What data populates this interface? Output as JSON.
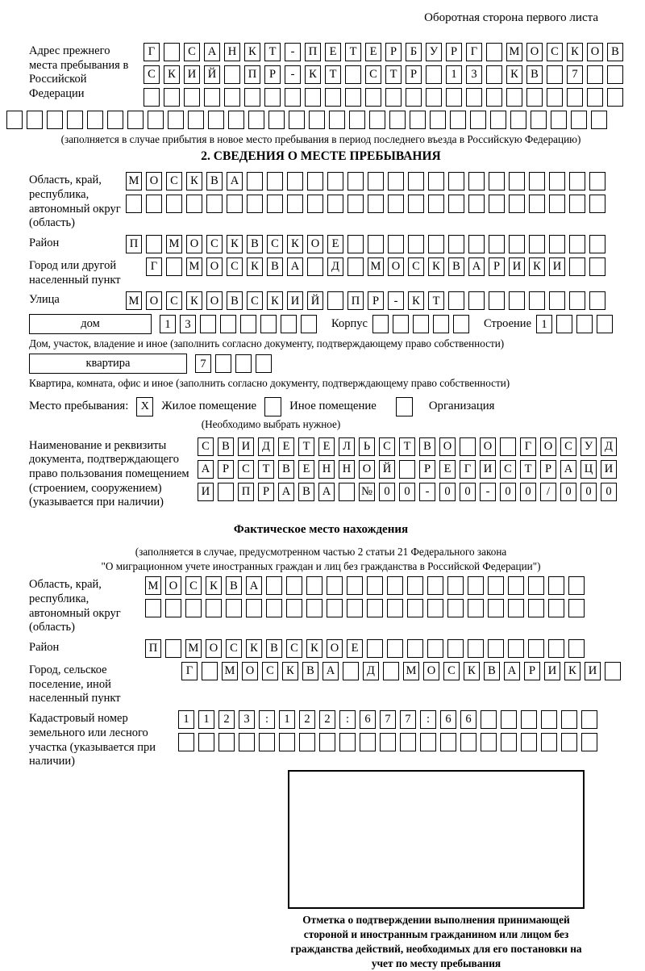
{
  "header_note": "Оборотная сторона первого листа",
  "prev_address": {
    "label": "Адрес прежнего места пребывания в Российской Федерации",
    "row1": {
      "t": "Г САНКТ-ПЕТЕРБУРГ МОСКОВ",
      "n": 24
    },
    "row2": {
      "t": "СКИЙ ПР-КТ СТР 13 КВ 7",
      "n": 24
    },
    "row3": {
      "t": "",
      "n": 24
    },
    "row4": {
      "t": "",
      "n": 30
    },
    "caption": "(заполняется в случае прибытия в новое место пребывания в период последнего въезда в Российскую Федерацию)"
  },
  "section2": {
    "title": "2. СВЕДЕНИЯ О МЕСТЕ ПРЕБЫВАНИЯ",
    "region": {
      "label": "Область, край, республика, автономный округ (область)",
      "row1": {
        "t": "МОСКВА",
        "n": 24
      },
      "row2": {
        "t": "",
        "n": 24
      }
    },
    "district": {
      "label": "Район",
      "row": {
        "t": "П МОСКВСКОЕ",
        "n": 24
      }
    },
    "city": {
      "label": "Город или другой населенный пункт",
      "row": {
        "t": "Г МОСКВА Д МОСКВАРИКИ",
        "n": 23
      }
    },
    "street": {
      "label": "Улица",
      "row": {
        "t": "МОСКОВСКИЙ ПР-КТ",
        "n": 24
      }
    },
    "house": {
      "box_label": "дом",
      "cells": {
        "t": "13",
        "n": 8
      },
      "korpus_label": "Корпус",
      "korpus_cells": {
        "t": "",
        "n": 5
      },
      "stroenie_label": "Строение",
      "stroenie_cells": {
        "t": "1",
        "n": 4
      },
      "caption": "Дом, участок, владение и иное (заполнить согласно документу, подтверждающему право собственности)"
    },
    "apartment": {
      "box_label": "квартира",
      "cells": {
        "t": "7",
        "n": 4
      },
      "caption": "Квартира, комната, офис и иное (заполнить согласно документу, подтверждающему право собственности)"
    },
    "stay_type": {
      "label": "Место пребывания:",
      "options": [
        {
          "label": "Жилое помещение",
          "mark": "X"
        },
        {
          "label": "Иное помещение",
          "mark": ""
        },
        {
          "label": "Организация",
          "mark": ""
        }
      ],
      "note": "(Необходимо выбрать нужное)"
    },
    "doc": {
      "label": "Наименование и реквизиты документа, подтверждающего право пользования помещением (строением, сооружением) (указывается при наличии)",
      "row1": {
        "t": "СВИДЕТЕЛЬСТВО О ГОСУД",
        "n": 21
      },
      "row2": {
        "t": "АРСТВЕННОЙ РЕГИСТРАЦИ",
        "n": 21
      },
      "row3": {
        "t": "И ПРАВА №00-00-00/000",
        "n": 21
      }
    }
  },
  "actual_location": {
    "title": "Фактическое место нахождения",
    "caption1": "(заполняется в случае, предусмотренном частью 2 статьи 21 Федерального закона",
    "caption2": "\"О миграционном учете иностранных граждан и лиц без гражданства в Российской Федерации\")",
    "region": {
      "label": "Область, край, республика, автономный округ (область)",
      "row1": {
        "t": "МОСКВА",
        "n": 22
      },
      "row2": {
        "t": "",
        "n": 22
      }
    },
    "district": {
      "label": "Район",
      "row": {
        "t": "П МОСКВСКОЕ",
        "n": 22
      }
    },
    "city": {
      "label": "Город, сельское поселение, иной населенный пункт",
      "row": {
        "t": "Г МОСКВА Д МОСКВАРИКИ",
        "n": 22
      }
    },
    "cadastre": {
      "label": "Кадастровый номер земельного или лесного участка (указывается при наличии)",
      "row1": {
        "t": "1123:122:677:66",
        "n": 21
      },
      "row2": {
        "t": "",
        "n": 21
      }
    }
  },
  "confirmation": {
    "note": "Отметка о подтверждении выполнения принимающей стороной и иностранным гражданином или лицом без гражданства действий, необходимых для его постановки на учет по месту пребывания"
  }
}
